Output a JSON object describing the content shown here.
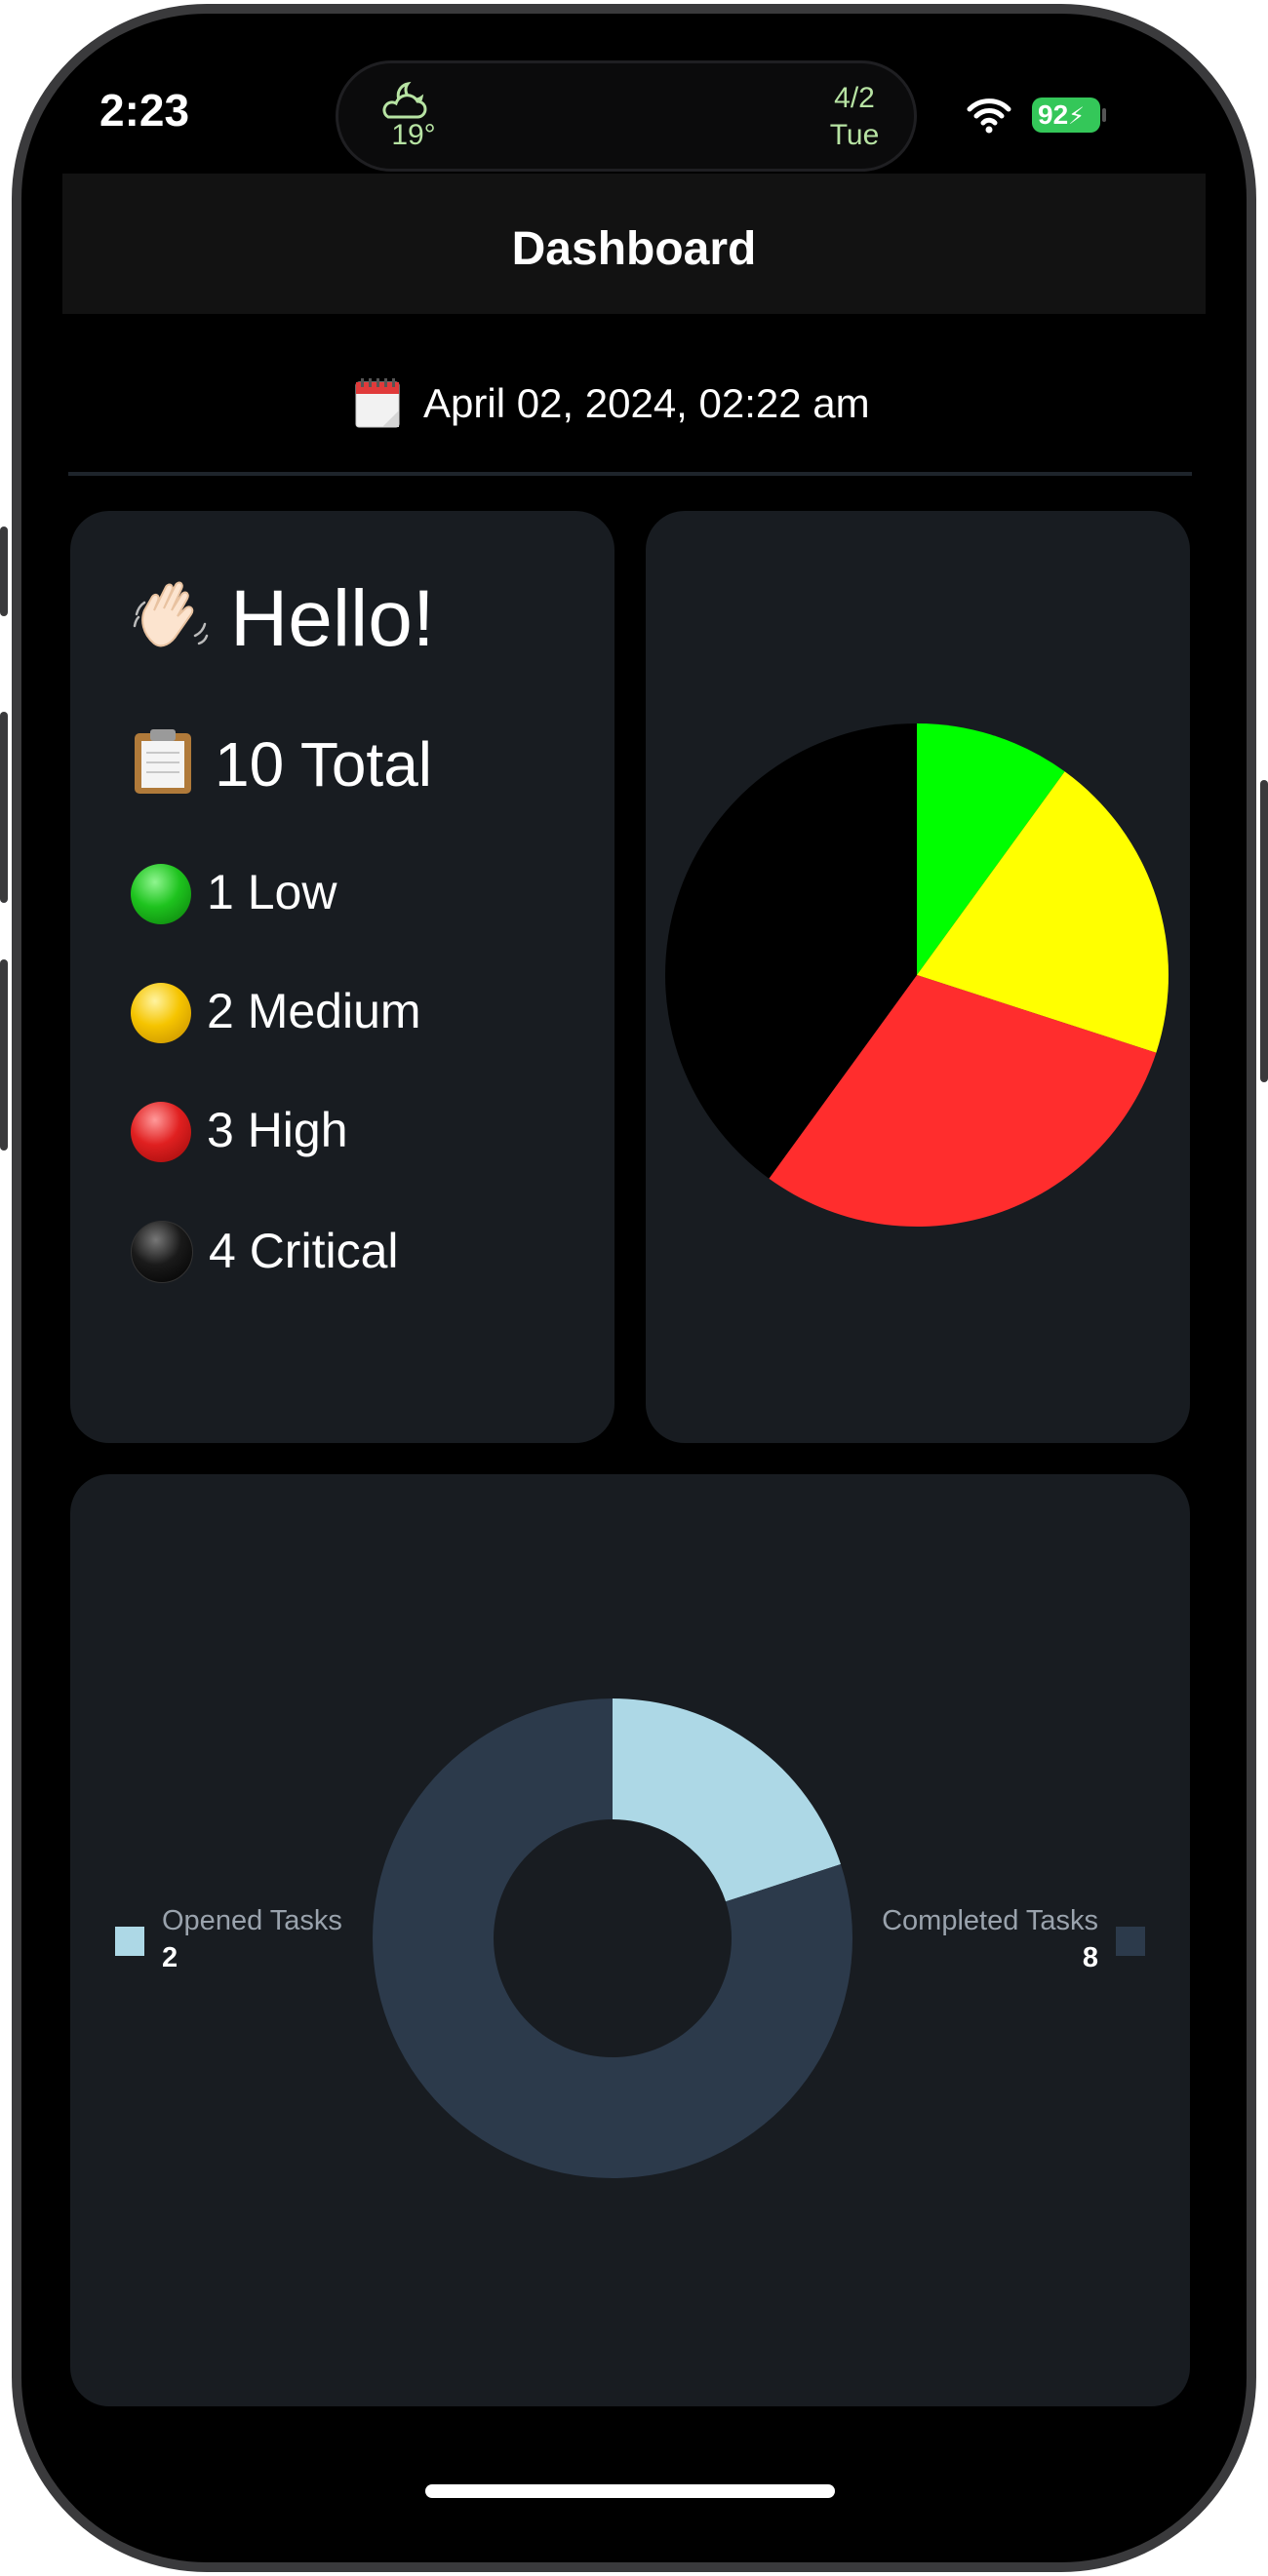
{
  "status_bar": {
    "time": "2:23",
    "weather_temp": "19°",
    "date_top": "4/2",
    "date_bottom": "Tue",
    "battery": "92"
  },
  "navbar": {
    "title": "Dashboard"
  },
  "date_line": {
    "text": "April 02, 2024, 02:22 am",
    "icon": "calendar-icon"
  },
  "summary": {
    "greeting": "Hello!",
    "greeting_icon": "waving-hand-icon",
    "total": "10 Total",
    "total_icon": "clipboard-icon",
    "priorities": [
      {
        "label": "1 Low",
        "color": "#1ec31e"
      },
      {
        "label": "2 Medium",
        "color": "#f5c400"
      },
      {
        "label": "3 High",
        "color": "#e02020"
      },
      {
        "label": "4 Critical",
        "color": "#111111"
      }
    ]
  },
  "chart_data": [
    {
      "type": "pie",
      "categories": [
        "Low",
        "Medium",
        "High",
        "Critical"
      ],
      "values": [
        1,
        2,
        3,
        4
      ],
      "colors": [
        "#00ff00",
        "#ffff00",
        "#ff2d2d",
        "#000000"
      ]
    },
    {
      "type": "pie",
      "categories": [
        "Opened Tasks",
        "Completed Tasks"
      ],
      "values": [
        2,
        8
      ],
      "colors": [
        "#add8e6",
        "#2c3a4b"
      ],
      "legend_labels": [
        "Opened Tasks",
        "Completed Tasks"
      ],
      "legend_values": [
        "2",
        "8"
      ]
    }
  ]
}
